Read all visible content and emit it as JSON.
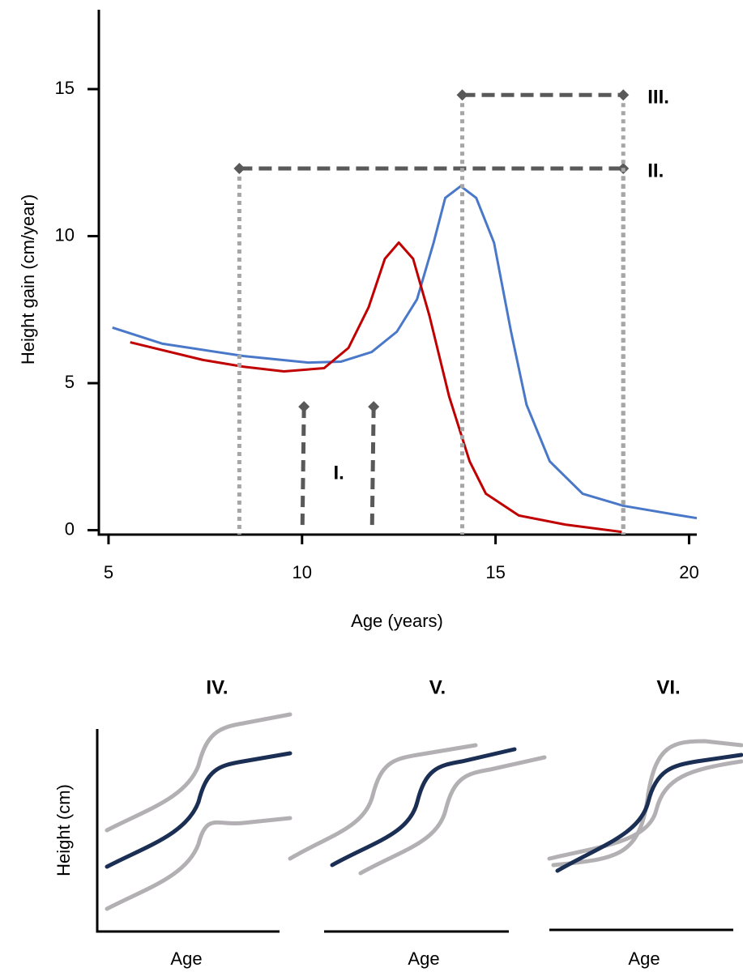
{
  "chart_data": {
    "type": "line",
    "xlabel": "Age (years)",
    "ylabel": "Height gain (cm/year)",
    "xlim": [
      4.75,
      20.2
    ],
    "ylim": [
      -0.15,
      17.7
    ],
    "xticks": [
      5,
      10,
      15,
      20
    ],
    "yticks": [
      0,
      5,
      10,
      15
    ],
    "series": [
      {
        "color": "#4a78c8",
        "x": [
          5.1,
          6.4,
          8.5,
          10.16,
          11.0,
          11.8,
          12.45,
          12.97,
          13.4,
          13.7,
          14.1,
          14.5,
          14.96,
          15.4,
          15.8,
          16.4,
          17.25,
          18.3,
          19.55,
          20.2
        ],
        "values": [
          6.89,
          6.34,
          5.92,
          5.7,
          5.73,
          6.06,
          6.75,
          7.85,
          9.78,
          11.3,
          11.7,
          11.3,
          9.78,
          6.75,
          4.27,
          2.34,
          1.24,
          0.83,
          0.55,
          0.41
        ]
      },
      {
        "color": "#c00000",
        "x": [
          5.56,
          7.44,
          8.49,
          9.53,
          10.57,
          11.2,
          11.72,
          12.14,
          12.5,
          12.87,
          13.29,
          13.8,
          14.33,
          14.75,
          15.6,
          16.8,
          18.26
        ],
        "values": [
          6.39,
          5.79,
          5.56,
          5.4,
          5.51,
          6.2,
          7.58,
          9.23,
          9.78,
          9.23,
          7.3,
          4.55,
          2.34,
          1.24,
          0.5,
          0.19,
          -0.06
        ]
      }
    ],
    "annotations": [
      {
        "label": "I.",
        "style": "dashed",
        "x": [
          10.05,
          11.85
        ],
        "y": 4.2
      },
      {
        "label": "II.",
        "style": "bracket",
        "x": [
          8.38,
          18.3
        ],
        "y": 12.3
      },
      {
        "label": "III.",
        "style": "bracket",
        "x": [
          14.14,
          18.3
        ],
        "y": 14.8
      }
    ]
  },
  "panels": {
    "ylabel": "Height (cm)",
    "items": [
      {
        "title": "IV.",
        "xlabel": "Age"
      },
      {
        "title": "V.",
        "xlabel": "Age"
      },
      {
        "title": "VI.",
        "xlabel": "Age"
      }
    ]
  }
}
